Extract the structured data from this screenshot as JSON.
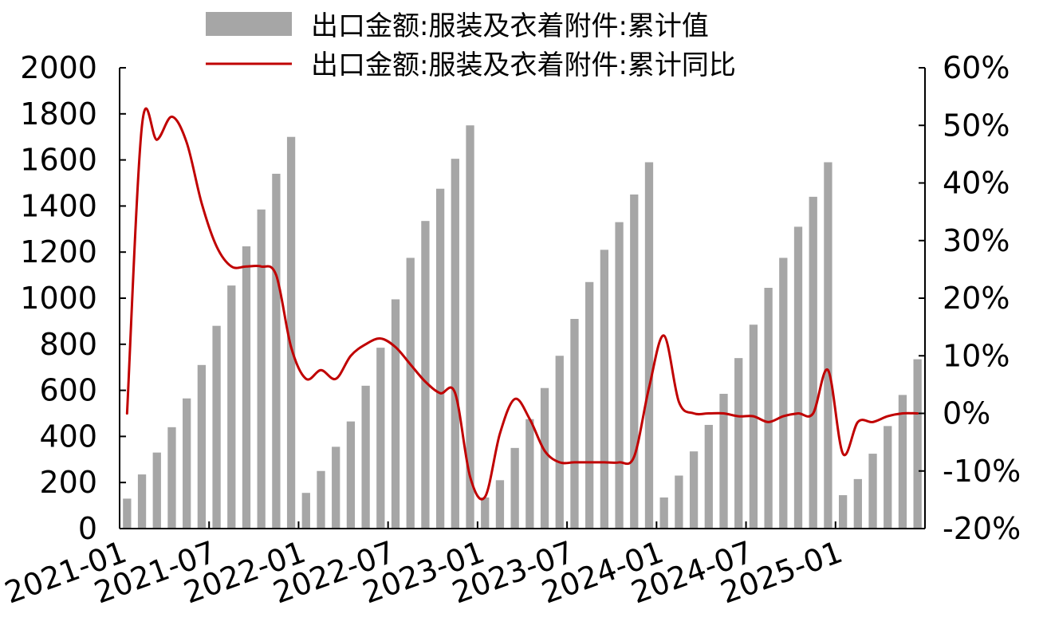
{
  "chart_data": {
    "type": "bar",
    "legend": {
      "placement": "top-center"
    },
    "series": [
      {
        "name": "出口金额:服装及衣着附件:累计值",
        "type": "bar",
        "axis": "left",
        "color": "#a6a6a6",
        "x": [
          "2021-01",
          "2021-02",
          "2021-03",
          "2021-04",
          "2021-05",
          "2021-06",
          "2021-07",
          "2021-08",
          "2021-09",
          "2021-10",
          "2021-11",
          "2021-12",
          "2022-01",
          "2022-02",
          "2022-03",
          "2022-04",
          "2022-05",
          "2022-06",
          "2022-07",
          "2022-08",
          "2022-09",
          "2022-10",
          "2022-11",
          "2022-12",
          "2023-01",
          "2023-02",
          "2023-03",
          "2023-04",
          "2023-05",
          "2023-06",
          "2023-07",
          "2023-08",
          "2023-09",
          "2023-10",
          "2023-11",
          "2023-12",
          "2024-01",
          "2024-02",
          "2024-03",
          "2024-04",
          "2024-05",
          "2024-06",
          "2024-07",
          "2024-08",
          "2024-09",
          "2024-10",
          "2024-11",
          "2024-12",
          "2025-01",
          "2025-02",
          "2025-03",
          "2025-04",
          "2025-05",
          "2025-06"
        ],
        "values": [
          130,
          235,
          330,
          440,
          565,
          710,
          880,
          1055,
          1225,
          1385,
          1540,
          1700,
          155,
          250,
          355,
          465,
          620,
          785,
          995,
          1175,
          1335,
          1475,
          1605,
          1750,
          135,
          210,
          350,
          475,
          610,
          750,
          910,
          1070,
          1210,
          1330,
          1450,
          1590,
          135,
          230,
          335,
          450,
          585,
          740,
          885,
          1045,
          1175,
          1310,
          1440,
          1590,
          145,
          215,
          325,
          445,
          580,
          735
        ]
      },
      {
        "name": "出口金额:服装及衣着附件:累计同比",
        "type": "line",
        "axis": "right",
        "color": "#c00000",
        "values": [
          0,
          50,
          47.5,
          51.5,
          47,
          36.5,
          29,
          25.5,
          25.5,
          25.5,
          24,
          11.5,
          6,
          7.5,
          6,
          10,
          12,
          13,
          11.5,
          8.5,
          5.5,
          3.5,
          3.5,
          -11,
          -14.5,
          -3.5,
          2.5,
          -1,
          -6.5,
          -8.5,
          -8.5,
          -8.5,
          -8.5,
          -8.5,
          -7.5,
          4.5,
          13.5,
          2,
          0,
          0,
          0,
          -0.5,
          -0.5,
          -1.5,
          -0.5,
          0,
          0,
          7.5,
          -7,
          -1.5,
          -1.5,
          -0.5,
          0,
          0
        ]
      }
    ],
    "left_axis": {
      "min": 0,
      "max": 2000,
      "ticks": [
        "0",
        "200",
        "400",
        "600",
        "800",
        "1000",
        "1200",
        "1400",
        "1600",
        "1800",
        "2000"
      ]
    },
    "right_axis": {
      "min": -20,
      "max": 60,
      "ticks": [
        "-20%",
        "-10%",
        "0%",
        "10%",
        "20%",
        "30%",
        "40%",
        "50%",
        "60%"
      ]
    },
    "x_tick_labels": [
      {
        "index": 0,
        "label": "2021-01"
      },
      {
        "index": 6,
        "label": "2021-07"
      },
      {
        "index": 12,
        "label": "2022-01"
      },
      {
        "index": 18,
        "label": "2022-07"
      },
      {
        "index": 24,
        "label": "2023-01"
      },
      {
        "index": 30,
        "label": "2023-07"
      },
      {
        "index": 36,
        "label": "2024-01"
      },
      {
        "index": 42,
        "label": "2024-07"
      },
      {
        "index": 48,
        "label": "2025-01"
      }
    ]
  }
}
